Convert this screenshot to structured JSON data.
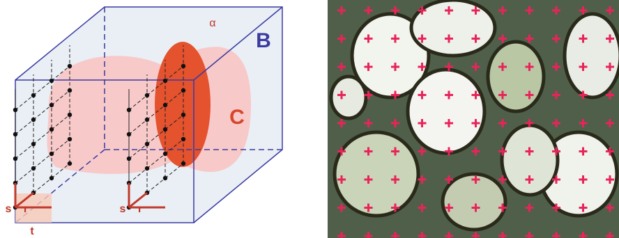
{
  "labels": {
    "box": "B",
    "region": "C",
    "angle": "α",
    "left_s": "s",
    "left_r": "r",
    "left_t": "t",
    "right_s": "s",
    "right_r": "r"
  }
}
